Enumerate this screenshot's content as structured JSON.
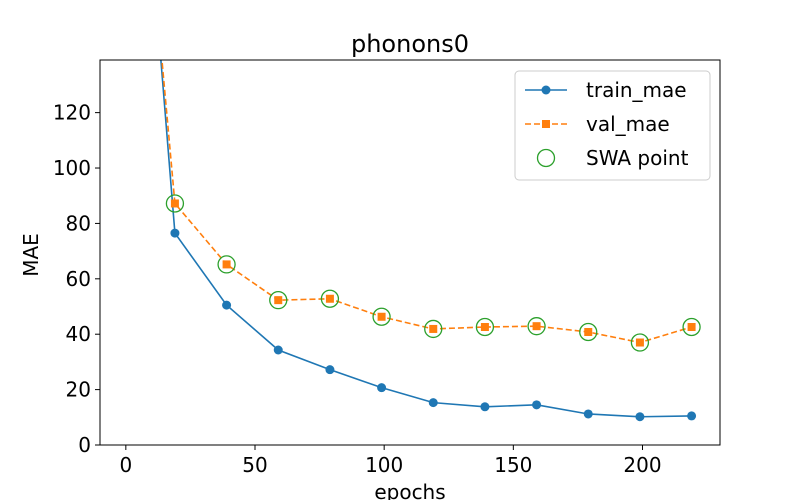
{
  "chart_data": {
    "type": "line",
    "title": "phonons0",
    "xlabel": "epochs",
    "ylabel": "MAE",
    "xlim": [
      -10,
      230
    ],
    "ylim": [
      0,
      139
    ],
    "xticks": [
      0,
      50,
      100,
      150,
      200
    ],
    "yticks": [
      0,
      20,
      40,
      60,
      80,
      100,
      120
    ],
    "grid": false,
    "legend_position": "top-right",
    "series": [
      {
        "name": "train_mae",
        "style": "solid",
        "marker": "circle",
        "color": "#1f77b4",
        "x": [
          10,
          19,
          39,
          59,
          79,
          99,
          119,
          139,
          159,
          179,
          199,
          219
        ],
        "y": [
          180,
          76.5,
          50.5,
          34.3,
          27.2,
          20.7,
          15.3,
          13.8,
          14.5,
          11.2,
          10.2,
          10.5
        ]
      },
      {
        "name": "val_mae",
        "style": "dashed",
        "marker": "square",
        "color": "#ff7f0e",
        "x": [
          10,
          19,
          39,
          59,
          79,
          99,
          119,
          139,
          159,
          179,
          199,
          219
        ],
        "y": [
          180,
          87.2,
          65.2,
          52.3,
          52.8,
          46.3,
          41.9,
          42.6,
          42.9,
          40.8,
          37.0,
          42.6
        ]
      },
      {
        "name": "SWA point",
        "style": "none",
        "marker": "open-circle",
        "color": "#2ca02c",
        "x": [
          19,
          39,
          59,
          79,
          99,
          119,
          139,
          159,
          179,
          199,
          219
        ],
        "y": [
          87.2,
          65.2,
          52.3,
          52.8,
          46.3,
          41.9,
          42.6,
          42.9,
          40.8,
          37.0,
          42.6
        ]
      }
    ]
  }
}
